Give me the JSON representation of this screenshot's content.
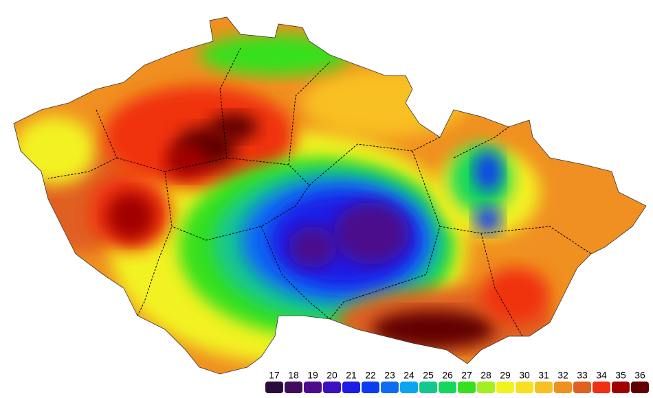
{
  "legend": [
    {
      "value": 17,
      "color": "#2b0a3d"
    },
    {
      "value": 18,
      "color": "#410b5e"
    },
    {
      "value": 19,
      "color": "#4c0c8c"
    },
    {
      "value": 20,
      "color": "#3a12c2"
    },
    {
      "value": 21,
      "color": "#1c1ce6"
    },
    {
      "value": 22,
      "color": "#0c3cf2"
    },
    {
      "value": 23,
      "color": "#0c6cf5"
    },
    {
      "value": 24,
      "color": "#0ca4f0"
    },
    {
      "value": 25,
      "color": "#12c88e"
    },
    {
      "value": 26,
      "color": "#14d85c"
    },
    {
      "value": 27,
      "color": "#36e01e"
    },
    {
      "value": 28,
      "color": "#a4f01e"
    },
    {
      "value": 29,
      "color": "#f2f222"
    },
    {
      "value": 30,
      "color": "#f8e020"
    },
    {
      "value": 31,
      "color": "#f8c020"
    },
    {
      "value": 32,
      "color": "#f09020"
    },
    {
      "value": 33,
      "color": "#e06020"
    },
    {
      "value": 34,
      "color": "#f03010"
    },
    {
      "value": 35,
      "color": "#a00000"
    },
    {
      "value": 36,
      "color": "#600000"
    }
  ]
}
